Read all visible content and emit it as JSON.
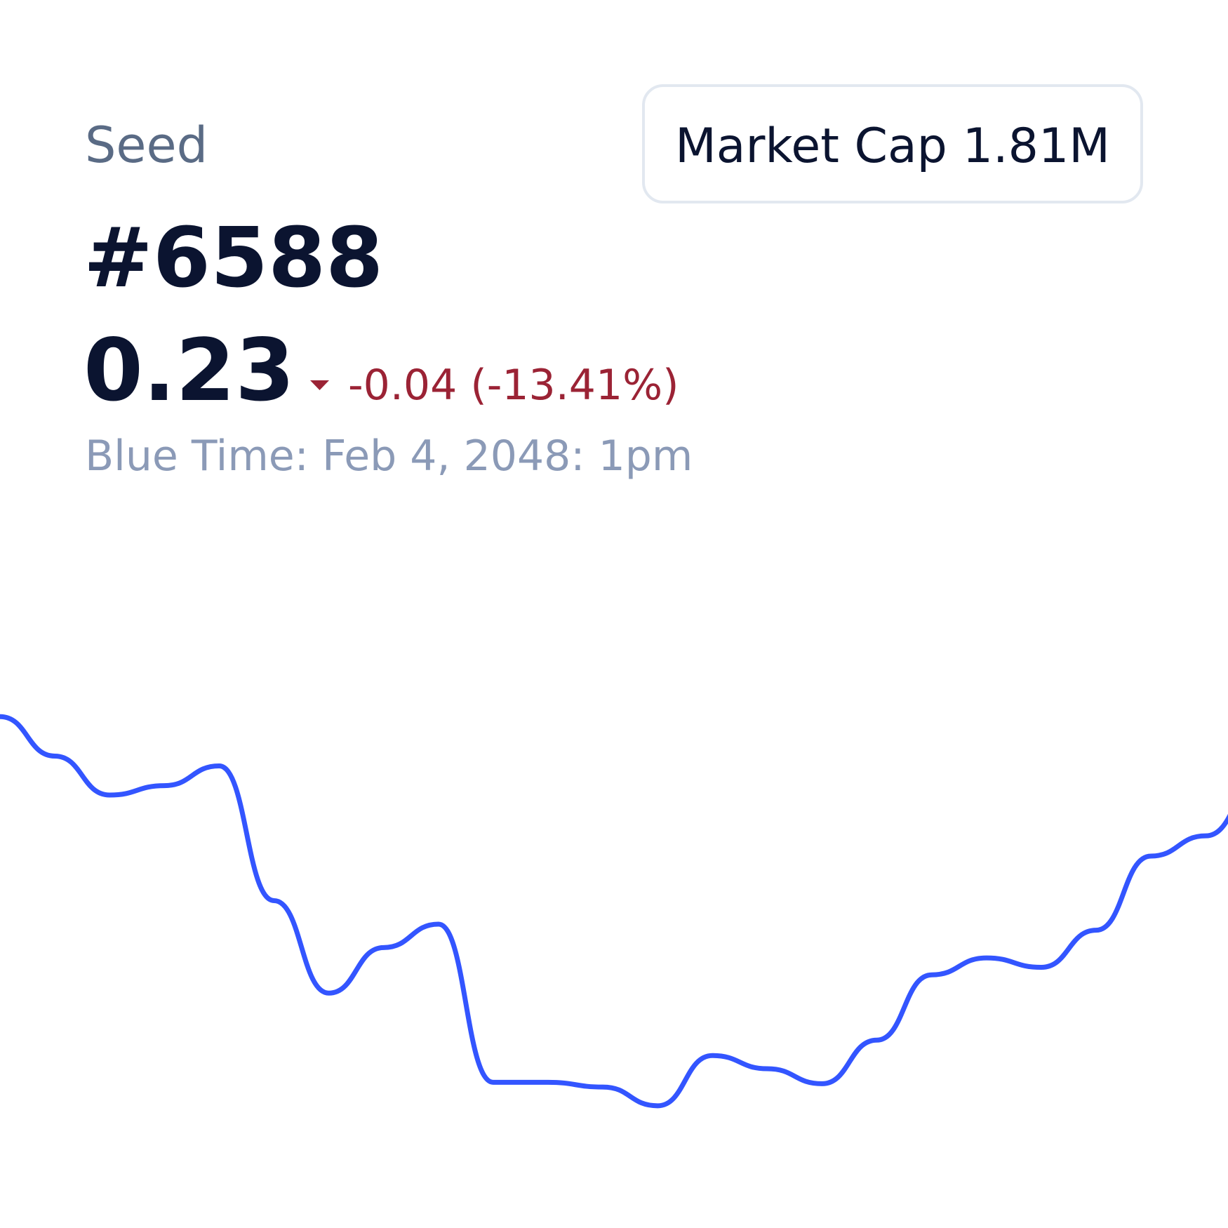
{
  "label": "Seed",
  "title": "#6588",
  "price": "0.23",
  "change": "-0.04 (-13.41%)",
  "timestamp": "Blue Time: Feb 4, 2048: 1pm",
  "market_cap": {
    "label": "Market Cap",
    "value": "1.81M"
  },
  "chart_data": {
    "type": "line",
    "categories": [
      null,
      null,
      null,
      null,
      null,
      null,
      null,
      null,
      null,
      null,
      null,
      null,
      null,
      null,
      null,
      null,
      null,
      null,
      null,
      null,
      null,
      null,
      null,
      null
    ],
    "series": [
      {
        "color": "#3355ff",
        "values": [
          89.2,
          80.8,
          72.5,
          74.5,
          78.7,
          50,
          30.3,
          40,
          45,
          11.3,
          11.3,
          10.3,
          6.3,
          17,
          14.2,
          11,
          20.3,
          34.2,
          37.8,
          35.8,
          43.7,
          59.5,
          63.8,
          75
        ]
      }
    ],
    "ylim": [
      0,
      100
    ]
  }
}
